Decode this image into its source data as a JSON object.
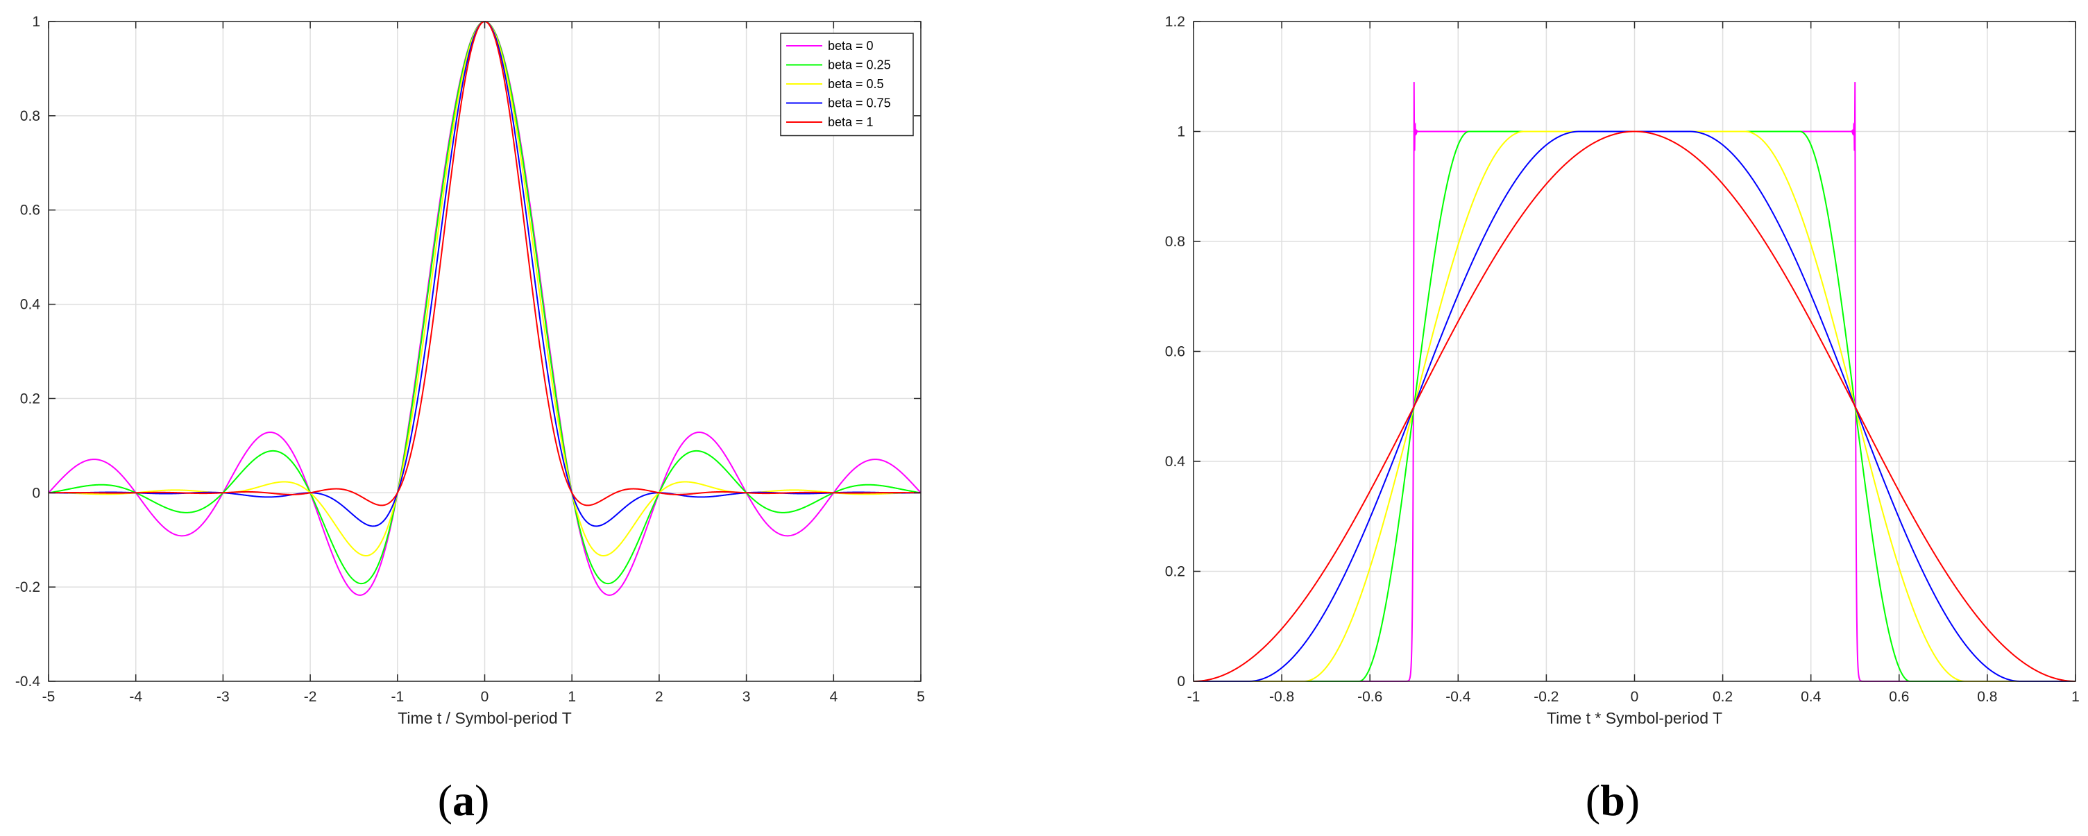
{
  "panels": [
    {
      "panel_label": "a",
      "chart_data": {
        "type": "line",
        "title": "",
        "xlabel": "Time t / Symbol-period T",
        "ylabel": "",
        "xlim": [
          -5,
          5
        ],
        "ylim": [
          -0.4,
          1
        ],
        "xticks": [
          -5,
          -4,
          -3,
          -2,
          -1,
          0,
          1,
          2,
          3,
          4,
          5
        ],
        "yticks": [
          -0.4,
          -0.2,
          0,
          0.2,
          0.4,
          0.6,
          0.8,
          1
        ],
        "grid": true,
        "legend_position": "top-right",
        "function": "raised-cosine impulse response h(t) = sinc(t) * cos(pi*beta*t) / (1 - (2*beta*t)^2)",
        "series": [
          {
            "name": "beta = 0",
            "beta": 0,
            "color": "#ff00ff",
            "x": [
              -5,
              -4.5,
              -4,
              -3.5,
              -3,
              -2.5,
              -2,
              -1.5,
              -1,
              -0.5,
              0,
              0.5,
              1,
              1.5,
              2,
              2.5,
              3,
              3.5,
              4,
              4.5,
              5
            ],
            "y": [
              0,
              0.071,
              0,
              -0.091,
              0,
              0.127,
              0,
              -0.212,
              0,
              0.637,
              1,
              0.637,
              0,
              -0.212,
              0,
              0.127,
              0,
              -0.091,
              0,
              0.071,
              0
            ]
          },
          {
            "name": "beta = 0.25",
            "beta": 0.25,
            "color": "#00ff00",
            "x": [
              -5,
              -4.5,
              -4,
              -3.5,
              -3,
              -2.5,
              -2,
              -1.5,
              -1,
              -0.5,
              0,
              0.5,
              1,
              1.5,
              2,
              2.5,
              3,
              3.5,
              4,
              4.5,
              5
            ],
            "y": [
              0,
              0.018,
              0,
              -0.044,
              0,
              0.089,
              0,
              -0.19,
              0,
              0.625,
              1,
              0.625,
              0,
              -0.19,
              0,
              0.089,
              0,
              -0.044,
              0,
              0.018,
              0
            ]
          },
          {
            "name": "beta = 0.5",
            "beta": 0.5,
            "color": "#ffff00",
            "x": [
              -5,
              -4.5,
              -4,
              -3.5,
              -3,
              -2.5,
              -2,
              -1.5,
              -1,
              -0.5,
              0,
              0.5,
              1,
              1.5,
              2,
              2.5,
              3,
              3.5,
              4,
              4.5,
              5
            ],
            "y": [
              0,
              0,
              0,
              0,
              0,
              0.024,
              0,
              -0.136,
              0,
              0.589,
              1,
              0.589,
              0,
              -0.136,
              0,
              0.024,
              0,
              0,
              0,
              0,
              0
            ]
          },
          {
            "name": "beta = 0.75",
            "beta": 0.75,
            "color": "#0000ff",
            "x": [
              -5,
              -4.5,
              -4,
              -3.5,
              -3,
              -2.5,
              -2,
              -1.5,
              -1,
              -0.5,
              0,
              0.5,
              1,
              1.5,
              2,
              2.5,
              3,
              3.5,
              4,
              4.5,
              5
            ],
            "y": [
              0,
              -0.001,
              0,
              0.002,
              0,
              -0.006,
              0,
              -0.071,
              0,
              0.531,
              1,
              0.531,
              0,
              -0.071,
              0,
              -0.006,
              0,
              0.002,
              0,
              -0.001,
              0
            ]
          },
          {
            "name": "beta = 1",
            "beta": 1,
            "color": "#ff0000",
            "x": [
              -5,
              -4.5,
              -4,
              -3.5,
              -3,
              -2.5,
              -2,
              -1.5,
              -1,
              -0.5,
              0,
              0.5,
              1,
              1.5,
              2,
              2.5,
              3,
              3.5,
              4,
              4.5,
              5
            ],
            "y": [
              0,
              0,
              0,
              0,
              0,
              0,
              0,
              -0.026,
              0,
              0.5,
              1,
              0.5,
              0,
              -0.026,
              0,
              0,
              0,
              0,
              0,
              0,
              0
            ]
          }
        ]
      }
    },
    {
      "panel_label": "b",
      "chart_data": {
        "type": "line",
        "title": "",
        "xlabel": "Time t * Symbol-period T",
        "ylabel": "",
        "xlim": [
          -1,
          1
        ],
        "ylim": [
          0,
          1.2
        ],
        "xticks": [
          -1,
          -0.8,
          -0.6,
          -0.4,
          -0.2,
          0,
          0.2,
          0.4,
          0.6,
          0.8,
          1
        ],
        "yticks": [
          0,
          0.2,
          0.4,
          0.6,
          0.8,
          1,
          1.2
        ],
        "grid": true,
        "function": "raised-cosine spectrum H(f): 1 for |f| <= (1-beta)/2, 0.5*(1+cos(pi/beta*(|f|-(1-beta)/2))) up to (1+beta)/2, 0 beyond; beta = 0 shows Gibbs overshoot to ~1.09 at |f| = 0.5",
        "series": [
          {
            "beta": 0,
            "color": "#ff00ff",
            "x": [
              -1,
              -0.5,
              -0.5,
              -0.5,
              0,
              0.5,
              0.5,
              0.5,
              1
            ],
            "y": [
              0,
              0,
              1.09,
              1,
              1,
              1,
              1.09,
              0,
              0
            ]
          },
          {
            "beta": 0.25,
            "color": "#00ff00",
            "x": [
              -1,
              -0.625,
              -0.5,
              -0.375,
              0,
              0.375,
              0.5,
              0.625,
              1
            ],
            "y": [
              0,
              0,
              0.5,
              1,
              1,
              1,
              0.5,
              0,
              0
            ]
          },
          {
            "beta": 0.5,
            "color": "#ffff00",
            "x": [
              -1,
              -0.75,
              -0.5,
              -0.25,
              0,
              0.25,
              0.5,
              0.75,
              1
            ],
            "y": [
              0,
              0,
              0.5,
              1,
              1,
              1,
              0.5,
              0,
              0
            ]
          },
          {
            "beta": 0.75,
            "color": "#0000ff",
            "x": [
              -1,
              -0.875,
              -0.5,
              -0.125,
              0,
              0.125,
              0.5,
              0.875,
              1
            ],
            "y": [
              0,
              0,
              0.5,
              1,
              1,
              1,
              0.5,
              0,
              0
            ]
          },
          {
            "beta": 1,
            "color": "#ff0000",
            "x": [
              -1,
              -0.5,
              0,
              0.5,
              1
            ],
            "y": [
              0,
              0.5,
              1,
              0.5,
              0
            ]
          }
        ]
      }
    }
  ]
}
